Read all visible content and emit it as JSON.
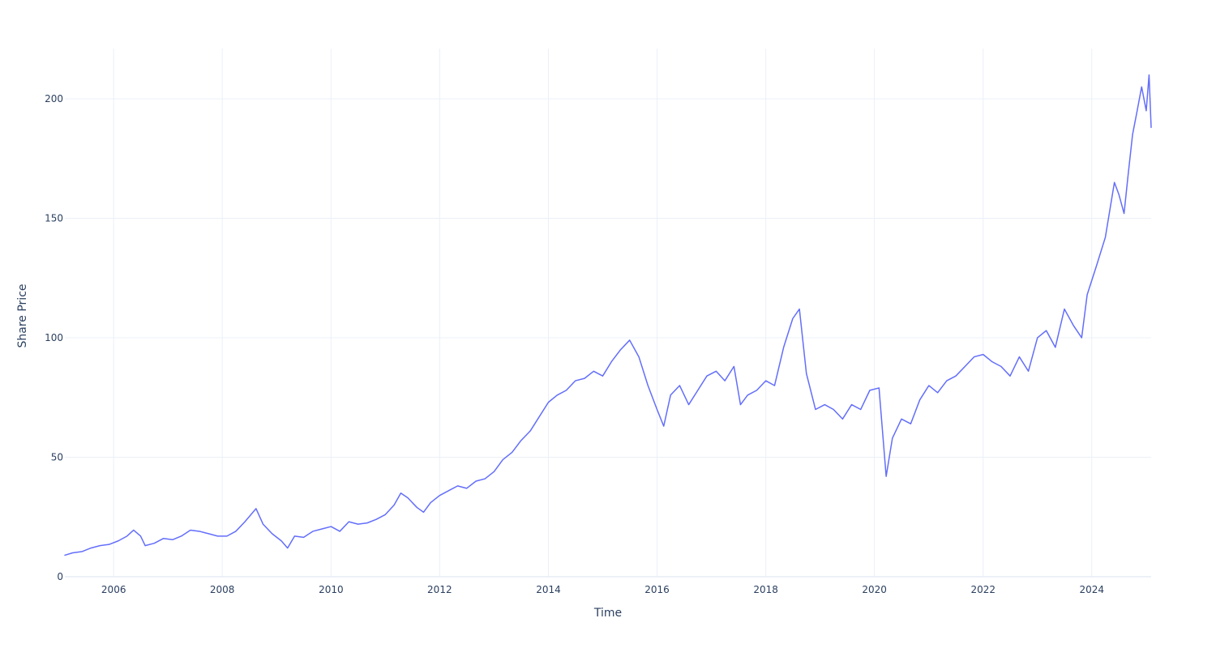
{
  "chart_data": {
    "type": "line",
    "title": "",
    "xlabel": "Time",
    "ylabel": "Share Price",
    "xlim": [
      "2005-02-07",
      "2025-02-03"
    ],
    "ylim": [
      0,
      221
    ],
    "x_tick_labels": [
      "2006",
      "2008",
      "2010",
      "2012",
      "2014",
      "2016",
      "2018",
      "2020",
      "2022",
      "2024"
    ],
    "y_tick_labels": [
      "0",
      "50",
      "100",
      "150",
      "200"
    ],
    "grid": true,
    "line_color": "#636efa",
    "series": [
      {
        "x": [
          "2005-02-07",
          "2005-04-01",
          "2005-06-01",
          "2005-08-01",
          "2005-10-01",
          "2005-12-01",
          "2006-02-01",
          "2006-04-01",
          "2006-05-15",
          "2006-07-01",
          "2006-08-01",
          "2006-10-01",
          "2006-12-01",
          "2007-02-01",
          "2007-04-01",
          "2007-06-01",
          "2007-08-01",
          "2007-10-01",
          "2007-12-01",
          "2008-02-01",
          "2008-04-01",
          "2008-06-01",
          "2008-08-15",
          "2008-10-01",
          "2008-12-01",
          "2009-02-01",
          "2009-03-15",
          "2009-05-01",
          "2009-07-01",
          "2009-09-01",
          "2009-11-01",
          "2010-01-01",
          "2010-03-01",
          "2010-05-01",
          "2010-07-01",
          "2010-09-01",
          "2010-11-01",
          "2011-01-01",
          "2011-03-01",
          "2011-04-15",
          "2011-06-01",
          "2011-08-01",
          "2011-09-15",
          "2011-11-01",
          "2012-01-01",
          "2012-03-01",
          "2012-05-01",
          "2012-07-01",
          "2012-09-01",
          "2012-11-01",
          "2013-01-01",
          "2013-03-01",
          "2013-05-01",
          "2013-07-01",
          "2013-09-01",
          "2013-11-01",
          "2014-01-01",
          "2014-03-01",
          "2014-05-01",
          "2014-07-01",
          "2014-09-01",
          "2014-11-01",
          "2015-01-01",
          "2015-03-01",
          "2015-05-01",
          "2015-07-01",
          "2015-09-01",
          "2015-11-01",
          "2016-01-01",
          "2016-02-15",
          "2016-04-01",
          "2016-06-01",
          "2016-08-01",
          "2016-10-01",
          "2016-12-01",
          "2017-02-01",
          "2017-04-01",
          "2017-06-01",
          "2017-07-15",
          "2017-09-01",
          "2017-11-01",
          "2018-01-01",
          "2018-03-01",
          "2018-05-01",
          "2018-07-01",
          "2018-08-15",
          "2018-10-01",
          "2018-12-01",
          "2019-02-01",
          "2019-04-01",
          "2019-06-01",
          "2019-08-01",
          "2019-10-01",
          "2019-12-01",
          "2020-02-01",
          "2020-03-20",
          "2020-05-01",
          "2020-07-01",
          "2020-09-01",
          "2020-11-01",
          "2021-01-01",
          "2021-03-01",
          "2021-05-01",
          "2021-07-01",
          "2021-09-01",
          "2021-11-01",
          "2022-01-01",
          "2022-03-01",
          "2022-05-01",
          "2022-07-01",
          "2022-09-01",
          "2022-11-01",
          "2023-01-01",
          "2023-03-01",
          "2023-05-01",
          "2023-07-01",
          "2023-09-01",
          "2023-10-25",
          "2023-12-01",
          "2024-02-01",
          "2024-04-01",
          "2024-06-01",
          "2024-07-01",
          "2024-08-05",
          "2024-09-01",
          "2024-10-01",
          "2024-11-01",
          "2024-12-01",
          "2025-01-01",
          "2025-01-20",
          "2025-02-03"
        ],
        "y": [
          9,
          10,
          10.5,
          12,
          13,
          13.5,
          15,
          17,
          19.5,
          17,
          13,
          14,
          16,
          15.5,
          17,
          19.5,
          19,
          18,
          17,
          17,
          19,
          23,
          28.5,
          22,
          18,
          15,
          12,
          17,
          16.5,
          19,
          20,
          21,
          19,
          23,
          22,
          22.5,
          24,
          26,
          30,
          35,
          33,
          29,
          27,
          31,
          34,
          36,
          38,
          37,
          40,
          41,
          44,
          49,
          52,
          57,
          61,
          67,
          73,
          76,
          78,
          82,
          83,
          86,
          84,
          90,
          95,
          99,
          92,
          80,
          70,
          63,
          76,
          80,
          72,
          78,
          84,
          86,
          82,
          88,
          72,
          76,
          78,
          82,
          80,
          96,
          108,
          112,
          85,
          70,
          72,
          70,
          66,
          72,
          70,
          78,
          79,
          42,
          58,
          66,
          64,
          74,
          80,
          77,
          82,
          84,
          88,
          92,
          93,
          90,
          88,
          84,
          92,
          86,
          100,
          103,
          96,
          112,
          105,
          100,
          118,
          130,
          142,
          165,
          160,
          152,
          168,
          185,
          195,
          205,
          195,
          210,
          188
        ]
      }
    ]
  }
}
